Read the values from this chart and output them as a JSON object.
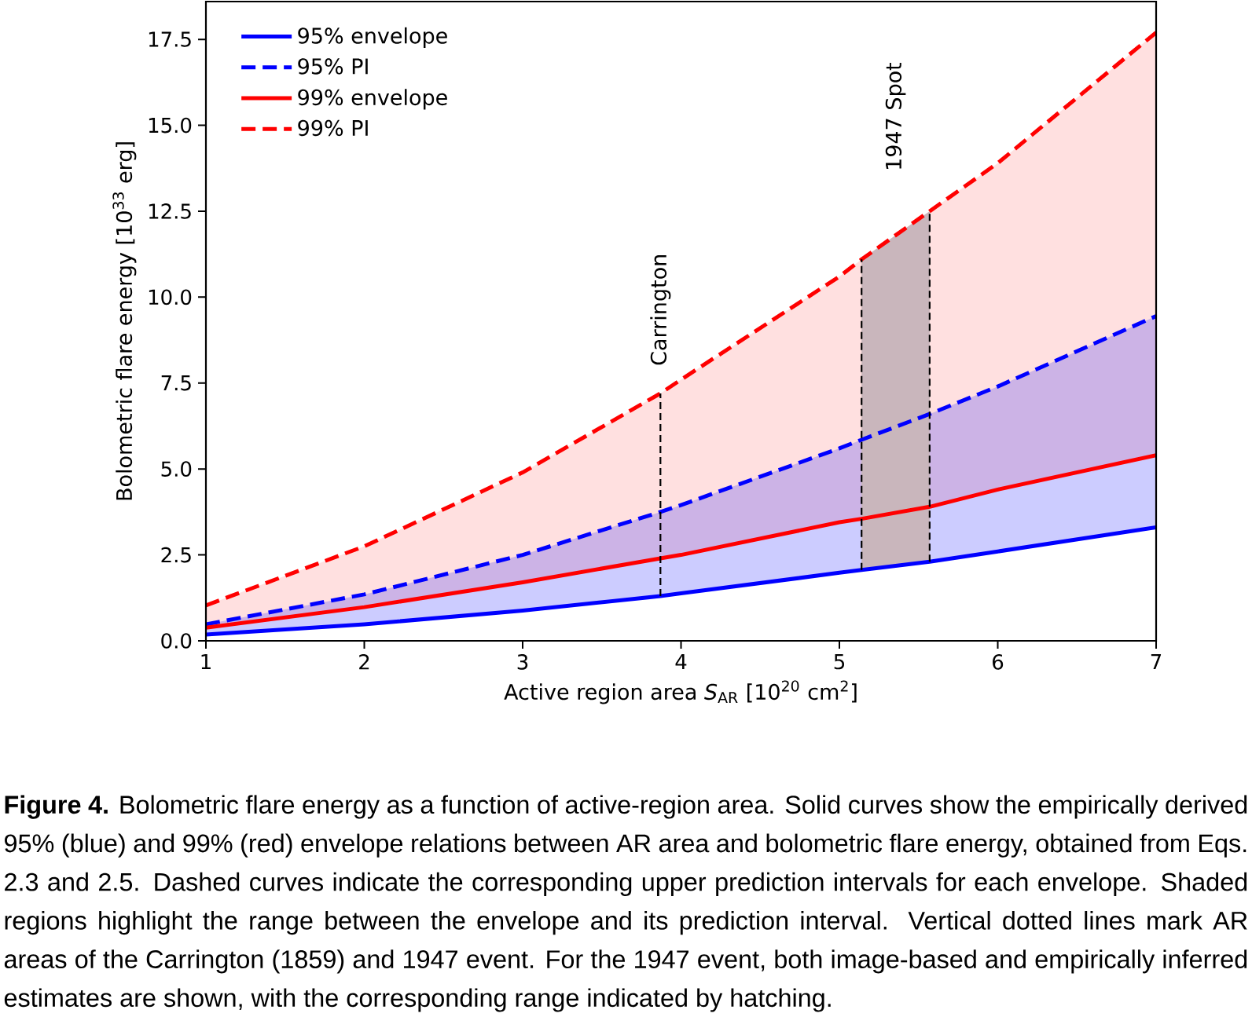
{
  "chart_data": {
    "type": "line",
    "xlabel": "Active region area *S*$_{AR}$ [10$^{20}$ cm$^{2}$]",
    "ylabel": "Bolometric flare energy [10$^{33}$ erg]",
    "x": [
      1,
      2,
      3,
      3.87,
      4,
      5,
      5.14,
      5.57,
      6,
      7
    ],
    "series": [
      {
        "name": "95% envelope",
        "color": "#0000ff",
        "line_style": "solid",
        "values": [
          0.18,
          0.48,
          0.88,
          1.3,
          1.38,
          1.98,
          2.06,
          2.3,
          2.6,
          3.3
        ]
      },
      {
        "name": "95% PI",
        "color": "#0000ff",
        "line_style": "dashed",
        "values": [
          0.48,
          1.35,
          2.5,
          3.75,
          3.95,
          5.6,
          5.85,
          6.6,
          7.4,
          9.45
        ],
        "lower": [
          0.18,
          0.48,
          0.88,
          1.3,
          1.38,
          1.98,
          2.06,
          2.3,
          2.6,
          3.3
        ],
        "upper": [
          0.48,
          1.35,
          2.5,
          3.75,
          3.95,
          5.6,
          5.85,
          6.6,
          7.4,
          9.45
        ]
      },
      {
        "name": "99% envelope",
        "color": "#ff0000",
        "line_style": "solid",
        "values": [
          0.38,
          0.98,
          1.7,
          2.4,
          2.5,
          3.45,
          3.55,
          3.9,
          4.4,
          5.4
        ]
      },
      {
        "name": "99% PI",
        "color": "#ff0000",
        "line_style": "dashed",
        "values": [
          1.03,
          2.75,
          4.9,
          7.2,
          7.6,
          10.6,
          11.1,
          12.5,
          13.9,
          17.7
        ],
        "lower": [
          0.38,
          0.98,
          1.7,
          2.4,
          2.5,
          3.45,
          3.55,
          3.9,
          4.4,
          5.4
        ],
        "upper": [
          1.03,
          2.75,
          4.9,
          7.2,
          7.6,
          10.6,
          11.1,
          12.5,
          13.9,
          17.7
        ]
      }
    ],
    "xlim": [
      1,
      7
    ],
    "ylim": [
      0,
      18.6
    ],
    "xticks": [
      1,
      2,
      3,
      4,
      5,
      6,
      7
    ],
    "yticks": [
      {
        "value": 0,
        "label": "0.0"
      },
      {
        "value": 2.5,
        "label": "2.5"
      },
      {
        "value": 5,
        "label": "5.0"
      },
      {
        "value": 7.5,
        "label": "7.5"
      },
      {
        "value": 10,
        "label": "10.0"
      },
      {
        "value": 12.5,
        "label": "12.5"
      },
      {
        "value": 15,
        "label": "15.0"
      },
      {
        "value": 17.5,
        "label": "17.5"
      }
    ],
    "ref_lines": [
      {
        "axis": "x",
        "value": 3.87,
        "label": "Carrington",
        "color": "#000000",
        "line_style": "dashed"
      },
      {
        "axis": "x",
        "value": 5.14,
        "color": "#000000",
        "line_style": "dashed"
      },
      {
        "axis": "x",
        "value": 5.57,
        "color": "#000000",
        "line_style": "dashed"
      }
    ],
    "bands": [
      {
        "axis": "x",
        "from": 5.14,
        "to": 5.57,
        "label": "1947 Spot",
        "color": "#c9b6bc"
      }
    ],
    "legend": "top left",
    "grid": false,
    "annotations": [
      "**Figure 4.** Bolometric flare energy as a function of active-region area. Solid curves show the empirically derived 95% (blue) and 99% (red) envelope relations between AR area and bolometric flare energy, obtained from Eqs. 2.3 and 2.5. Dashed curves indicate the corresponding upper prediction intervals for each envelope. Shaded regions highlight the range between the envelope and its prediction interval. Vertical dotted lines mark AR areas of the Carrington (1859) and 1947 event. For the 1947 event, both image-based and empirically inferred estimates are shown, with the corresponding range indicated by hatching."
    ]
  }
}
